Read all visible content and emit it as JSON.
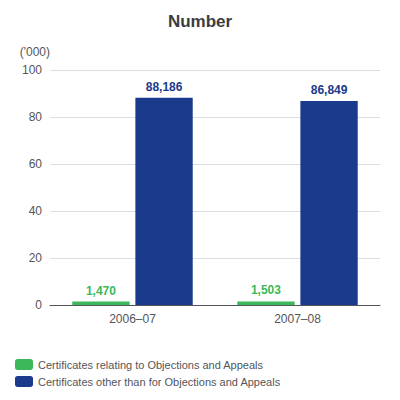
{
  "chart_data": {
    "type": "bar",
    "title": "Number",
    "ylabel": "('000)",
    "categories": [
      "2006–07",
      "2007–08"
    ],
    "series": [
      {
        "name": "Certificates relating to Objections and Appeals",
        "color": "#3cb85a",
        "values": [
          1.47,
          1.503
        ],
        "value_labels": [
          "1,470",
          "1,503"
        ]
      },
      {
        "name": "Certificates other than for Objections and Appeals",
        "color": "#1a3a8c",
        "values": [
          88.186,
          86.849
        ],
        "value_labels": [
          "88,186",
          "86,849"
        ]
      }
    ],
    "ylim": [
      0,
      100
    ],
    "yticks": [
      0,
      20,
      40,
      60,
      80,
      100
    ],
    "grid": true,
    "legend": "bottom",
    "data_labels": true
  }
}
